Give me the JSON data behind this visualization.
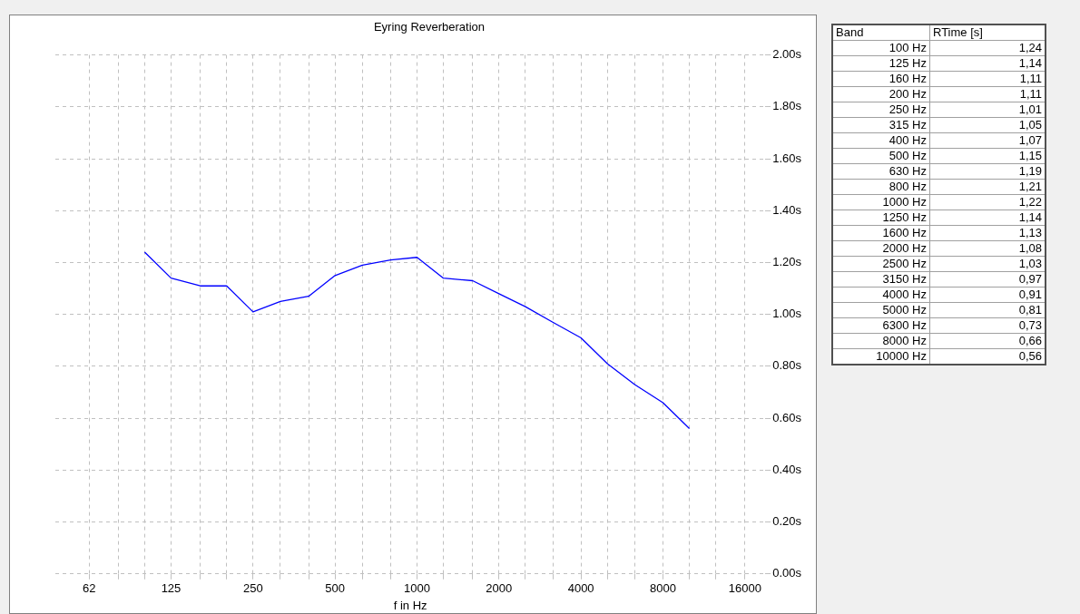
{
  "chart_data": [
    {
      "type": "line",
      "title": "Eyring Reverberation",
      "xlabel": "f in Hz",
      "log": "x",
      "grid": true,
      "legend": false,
      "marker": "none",
      "line_style": "solid",
      "x": [
        100,
        125,
        160,
        200,
        250,
        315,
        400,
        500,
        630,
        800,
        1000,
        1250,
        1600,
        2000,
        2500,
        3150,
        4000,
        5000,
        6300,
        8000,
        10000
      ],
      "series": [
        {
          "color": "#0000ff",
          "values": [
            1.24,
            1.14,
            1.11,
            1.11,
            1.01,
            1.05,
            1.07,
            1.15,
            1.19,
            1.21,
            1.22,
            1.14,
            1.13,
            1.08,
            1.03,
            0.97,
            0.91,
            0.81,
            0.73,
            0.66,
            0.56
          ]
        }
      ],
      "xlim": [
        47,
        19000
      ],
      "xticks": [
        {
          "value": 62.5,
          "label": "62"
        },
        {
          "value": 80,
          "label": null
        },
        {
          "value": 100,
          "label": null
        },
        125,
        {
          "value": 160,
          "label": null
        },
        {
          "value": 200,
          "label": null
        },
        250,
        {
          "value": 315,
          "label": null
        },
        {
          "value": 400,
          "label": null
        },
        500,
        {
          "value": 630,
          "label": null
        },
        {
          "value": 800,
          "label": null
        },
        1000,
        {
          "value": 1250,
          "label": null
        },
        {
          "value": 1600,
          "label": null
        },
        2000,
        {
          "value": 2500,
          "label": null
        },
        {
          "value": 3150,
          "label": null
        },
        4000,
        {
          "value": 5000,
          "label": null
        },
        {
          "value": 6300,
          "label": null
        },
        8000,
        {
          "value": 10000,
          "label": null
        },
        {
          "value": 12500,
          "label": null
        },
        16000
      ],
      "ylim": [
        0,
        2
      ],
      "yticks": [
        {
          "value": 0,
          "label": "0.00s"
        },
        {
          "value": 0.2,
          "label": "0.20s"
        },
        {
          "value": 0.4,
          "label": "0.40s"
        },
        {
          "value": 0.6,
          "label": "0.60s"
        },
        {
          "value": 0.8,
          "label": "0.80s"
        },
        {
          "value": 1,
          "label": "1.00s"
        },
        {
          "value": 1.2,
          "label": "1.20s"
        },
        {
          "value": 1.4,
          "label": "1.40s"
        },
        {
          "value": 1.6,
          "label": "1.60s"
        },
        {
          "value": 1.8,
          "label": "1.80s"
        },
        {
          "value": 2,
          "label": "2.00s"
        }
      ]
    },
    {
      "type": "other",
      "annotations": [
        "Band",
        "RTime [s]",
        "100 Hz",
        "1,24",
        "125 Hz",
        "1,14",
        "160 Hz",
        "1,11",
        "200 Hz",
        "1,11",
        "250 Hz",
        "1,01",
        "315 Hz",
        "1,05",
        "400 Hz",
        "1,07",
        "500 Hz",
        "1,15",
        "630 Hz",
        "1,19",
        "800 Hz",
        "1,21",
        "1000 Hz",
        "1,22",
        "1250 Hz",
        "1,14",
        "1600 Hz",
        "1,13",
        "2000 Hz",
        "1,08",
        "2500 Hz",
        "1,03",
        "3150 Hz",
        "0,97",
        "4000 Hz",
        "0,91",
        "5000 Hz",
        "0,81",
        "6300 Hz",
        "0,73",
        "8000 Hz",
        "0,66",
        "10000 Hz",
        "0,56"
      ]
    }
  ]
}
